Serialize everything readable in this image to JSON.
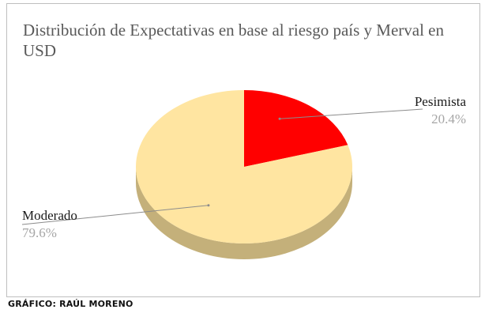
{
  "chart_data": {
    "type": "pie",
    "title": "Distribución de Expectativas en base al riesgo país y Merval en USD",
    "slices": [
      {
        "name": "Pesimista",
        "value": 20.4,
        "label": "20.4%",
        "color": "#ff0000",
        "side_color": "#b30000"
      },
      {
        "name": "Moderado",
        "value": 79.6,
        "label": "79.6%",
        "color": "#ffe5a1",
        "side_color": "#c4b07a"
      }
    ],
    "legend": "none",
    "three_d": true
  },
  "footer": {
    "credit": "GRÁFICO: RAÚL MORENO"
  }
}
